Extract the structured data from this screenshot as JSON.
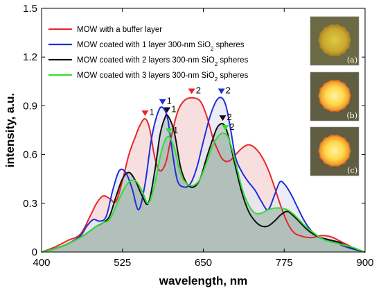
{
  "chart_data": {
    "type": "area",
    "xlabel": "wavelength, nm",
    "ylabel": "intensity, a.u.",
    "xlim": [
      400,
      900
    ],
    "ylim": [
      0,
      1.5
    ],
    "xticks": [
      400,
      525,
      650,
      775,
      900
    ],
    "yticks": [
      0,
      0.3,
      0.6,
      0.9,
      1.2,
      1.5
    ],
    "ytick_labels": [
      "0",
      "0.3",
      "0.6",
      "0.9",
      "1.2",
      "1.5"
    ],
    "legend_position": "top-left",
    "grid": false,
    "series": [
      {
        "name": "MOW with a buffer layer",
        "color": "#e8262a",
        "fill": "#f6d4d4",
        "x": [
          400,
          420,
          440,
          460,
          475,
          485,
          495,
          505,
          515,
          525,
          535,
          545,
          552,
          560,
          567,
          575,
          583,
          592,
          600,
          610,
          620,
          632,
          645,
          655,
          665,
          672,
          680,
          690,
          700,
          710,
          720,
          730,
          740,
          750,
          760,
          770,
          780,
          790,
          800,
          810,
          820,
          830,
          840,
          850,
          860,
          870,
          880,
          890,
          900
        ],
        "y": [
          0,
          0.03,
          0.07,
          0.11,
          0.22,
          0.3,
          0.345,
          0.33,
          0.31,
          0.44,
          0.6,
          0.71,
          0.78,
          0.82,
          0.76,
          0.58,
          0.5,
          0.55,
          0.7,
          0.86,
          0.93,
          0.95,
          0.93,
          0.84,
          0.7,
          0.63,
          0.57,
          0.56,
          0.6,
          0.64,
          0.66,
          0.64,
          0.59,
          0.51,
          0.4,
          0.28,
          0.18,
          0.12,
          0.1,
          0.09,
          0.09,
          0.1,
          0.1,
          0.09,
          0.07,
          0.05,
          0.03,
          0.01,
          0
        ]
      },
      {
        "name": "MOW coated with 1 layer 300-nm SiO2 spheres",
        "color": "#1f2fd6",
        "fill": "#e6e6f4",
        "x": [
          400,
          420,
          440,
          460,
          470,
          480,
          490,
          500,
          510,
          520,
          530,
          540,
          550,
          560,
          570,
          580,
          587,
          595,
          602,
          610,
          620,
          630,
          640,
          650,
          660,
          670,
          678,
          685,
          692,
          700,
          710,
          720,
          730,
          740,
          750,
          760,
          768,
          775,
          785,
          795,
          805,
          815,
          825,
          835,
          845,
          855,
          865,
          880,
          900
        ],
        "y": [
          0,
          0.02,
          0.05,
          0.1,
          0.16,
          0.2,
          0.19,
          0.22,
          0.38,
          0.5,
          0.49,
          0.39,
          0.26,
          0.42,
          0.7,
          0.86,
          0.89,
          0.82,
          0.62,
          0.44,
          0.4,
          0.42,
          0.52,
          0.68,
          0.83,
          0.93,
          0.95,
          0.9,
          0.76,
          0.58,
          0.49,
          0.43,
          0.38,
          0.31,
          0.26,
          0.35,
          0.43,
          0.42,
          0.36,
          0.28,
          0.2,
          0.14,
          0.1,
          0.08,
          0.07,
          0.06,
          0.04,
          0.02,
          0
        ]
      },
      {
        "name": "MOW coated with 2 layers 300-nm SiO2 spheres",
        "color": "#111111",
        "fill": "#b8c4c4",
        "x": [
          400,
          420,
          440,
          460,
          475,
          485,
          495,
          505,
          515,
          525,
          535,
          545,
          555,
          565,
          575,
          583,
          590,
          595,
          605,
          615,
          625,
          635,
          645,
          655,
          665,
          672,
          680,
          686,
          692,
          700,
          710,
          720,
          730,
          740,
          750,
          760,
          770,
          780,
          790,
          800,
          810,
          820,
          830,
          840,
          850,
          860,
          870,
          885,
          900
        ],
        "y": [
          0,
          0.02,
          0.05,
          0.09,
          0.13,
          0.16,
          0.18,
          0.22,
          0.34,
          0.45,
          0.49,
          0.44,
          0.35,
          0.3,
          0.5,
          0.72,
          0.82,
          0.84,
          0.74,
          0.52,
          0.42,
          0.4,
          0.45,
          0.58,
          0.7,
          0.77,
          0.79,
          0.75,
          0.66,
          0.52,
          0.36,
          0.25,
          0.19,
          0.16,
          0.16,
          0.19,
          0.23,
          0.25,
          0.22,
          0.18,
          0.14,
          0.11,
          0.09,
          0.08,
          0.07,
          0.06,
          0.04,
          0.02,
          0
        ]
      },
      {
        "name": "MOW coated with 3 layers 300-nm SiO2 spheres",
        "color": "#33dd33",
        "fill": "#a9bcb3",
        "x": [
          400,
          420,
          440,
          460,
          475,
          485,
          495,
          505,
          515,
          525,
          535,
          545,
          555,
          565,
          575,
          583,
          590,
          597,
          605,
          615,
          625,
          635,
          645,
          655,
          665,
          675,
          683,
          690,
          700,
          710,
          720,
          730,
          740,
          750,
          760,
          770,
          780,
          790,
          800,
          810,
          820,
          830,
          840,
          850,
          860,
          870,
          880,
          890,
          900
        ],
        "y": [
          0,
          0.02,
          0.05,
          0.09,
          0.13,
          0.16,
          0.18,
          0.2,
          0.28,
          0.37,
          0.43,
          0.44,
          0.38,
          0.3,
          0.42,
          0.58,
          0.68,
          0.71,
          0.64,
          0.48,
          0.42,
          0.41,
          0.45,
          0.55,
          0.66,
          0.72,
          0.73,
          0.69,
          0.55,
          0.39,
          0.29,
          0.24,
          0.24,
          0.26,
          0.27,
          0.27,
          0.26,
          0.23,
          0.19,
          0.15,
          0.12,
          0.09,
          0.07,
          0.06,
          0.05,
          0.04,
          0.03,
          0.015,
          0
        ]
      }
    ],
    "peak_markers": [
      {
        "series": 0,
        "x": 560,
        "y": 0.82,
        "label": "1",
        "label_side": "right"
      },
      {
        "series": 0,
        "x": 632,
        "y": 0.955,
        "label": "2",
        "label_side": "right"
      },
      {
        "series": 1,
        "x": 587,
        "y": 0.89,
        "label": "1",
        "label_side": "right"
      },
      {
        "series": 1,
        "x": 678,
        "y": 0.955,
        "label": "2",
        "label_side": "right"
      },
      {
        "series": 2,
        "x": 594,
        "y": 0.84,
        "label": "1",
        "label_side": "right"
      },
      {
        "series": 2,
        "x": 680,
        "y": 0.79,
        "label": "2",
        "label_side": "right"
      },
      {
        "series": 3,
        "x": 597,
        "y": 0.71,
        "label": "1",
        "label_side": "right"
      },
      {
        "series": 3,
        "x": 684,
        "y": 0.73,
        "label": "2",
        "label_side": "right"
      }
    ],
    "insets": [
      {
        "label": "(a)",
        "brightness": "dim"
      },
      {
        "label": "(b)",
        "brightness": "bright"
      },
      {
        "label": "(c)",
        "brightness": "bright"
      }
    ]
  }
}
